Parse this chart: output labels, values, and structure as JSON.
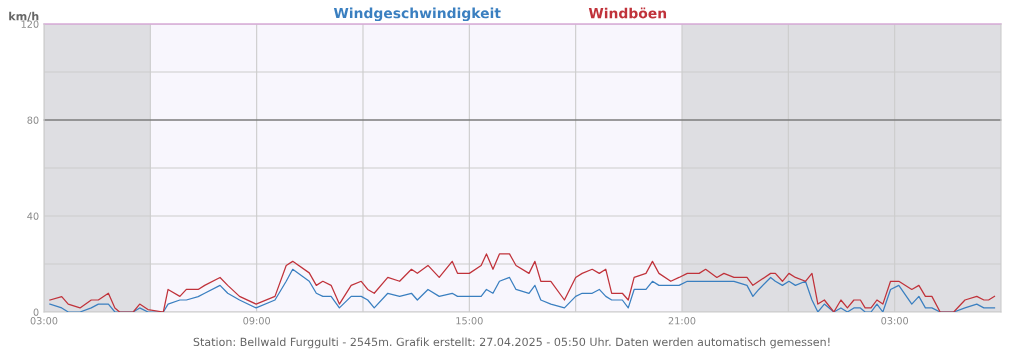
{
  "chart_data": {
    "type": "line",
    "ylabel": "km/h",
    "x": [
      "2025-04-26T03:10",
      "2025-04-26T03:30",
      "2025-04-26T03:41",
      "2025-04-26T04:01",
      "2025-04-26T04:20",
      "2025-04-26T04:32",
      "2025-04-26T04:49",
      "2025-04-26T05:00",
      "2025-04-26T05:08",
      "2025-04-26T05:31",
      "2025-04-26T05:42",
      "2025-04-26T05:56",
      "2025-04-26T06:22",
      "2025-04-26T06:30",
      "2025-04-26T06:50",
      "2025-04-26T07:01",
      "2025-04-26T07:21",
      "2025-04-26T07:32",
      "2025-04-26T07:58",
      "2025-04-26T08:11",
      "2025-04-26T08:31",
      "2025-04-26T08:59",
      "2025-04-26T09:31",
      "2025-04-26T09:50",
      "2025-04-26T10:01",
      "2025-04-26T10:29",
      "2025-04-26T10:41",
      "2025-04-26T10:52",
      "2025-04-26T11:06",
      "2025-04-26T11:20",
      "2025-04-26T11:40",
      "2025-04-26T11:57",
      "2025-04-26T12:08",
      "2025-04-26T12:19",
      "2025-04-26T12:42",
      "2025-04-26T13:02",
      "2025-04-26T13:22",
      "2025-04-26T13:32",
      "2025-04-26T13:50",
      "2025-04-26T14:09",
      "2025-04-26T14:31",
      "2025-04-26T14:40",
      "2025-04-26T15:00",
      "2025-04-26T15:20",
      "2025-04-26T15:29",
      "2025-04-26T15:40",
      "2025-04-26T15:51",
      "2025-04-26T16:08",
      "2025-04-26T16:19",
      "2025-04-26T16:41",
      "2025-04-26T16:51",
      "2025-04-26T17:01",
      "2025-04-26T17:18",
      "2025-04-26T17:41",
      "2025-04-26T18:00",
      "2025-04-26T18:11",
      "2025-04-26T18:28",
      "2025-04-26T18:40",
      "2025-04-26T18:51",
      "2025-04-26T19:01",
      "2025-04-26T19:19",
      "2025-04-26T19:29",
      "2025-04-26T19:39",
      "2025-04-26T19:59",
      "2025-04-26T20:10",
      "2025-04-26T20:21",
      "2025-04-26T20:41",
      "2025-04-26T20:55",
      "2025-04-26T21:09",
      "2025-04-26T21:12",
      "2025-04-26T21:29",
      "2025-04-26T21:40",
      "2025-04-26T21:59",
      "2025-04-26T22:11",
      "2025-04-26T22:28",
      "2025-04-26T22:50",
      "2025-04-26T23:00",
      "2025-04-26T23:10",
      "2025-04-26T23:30",
      "2025-04-26T23:38",
      "2025-04-26T23:50",
      "2025-04-27T00:01",
      "2025-04-27T00:12",
      "2025-04-27T00:29",
      "2025-04-27T00:40",
      "2025-04-27T00:50",
      "2025-04-27T01:01",
      "2025-04-27T01:17",
      "2025-04-27T01:29",
      "2025-04-27T01:40",
      "2025-04-27T01:51",
      "2025-04-27T02:02",
      "2025-04-27T02:10",
      "2025-04-27T02:20",
      "2025-04-27T02:30",
      "2025-04-27T02:40",
      "2025-04-27T02:53",
      "2025-04-27T03:07",
      "2025-04-27T03:29",
      "2025-04-27T03:41",
      "2025-04-27T03:52",
      "2025-04-27T04:03",
      "2025-04-27T04:17",
      "2025-04-27T04:40",
      "2025-04-27T04:59",
      "2025-04-27T05:19",
      "2025-04-27T05:31",
      "2025-04-27T05:39",
      "2025-04-27T05:49"
    ],
    "series": [
      {
        "name": "Windgeschwindigkeit",
        "color": "#3a7fc0",
        "values": [
          3.3,
          1.7,
          0,
          0,
          1.7,
          3.3,
          3.3,
          0,
          0,
          0,
          1.7,
          0,
          0,
          3.3,
          5,
          5,
          6.4,
          7.8,
          11.1,
          7.8,
          5,
          1.7,
          5,
          12.8,
          17.8,
          12.8,
          7.8,
          6.5,
          6.5,
          1.7,
          6.5,
          6.5,
          5,
          1.7,
          7.8,
          6.5,
          7.8,
          5,
          9.4,
          6.5,
          7.8,
          6.5,
          6.5,
          6.5,
          9.4,
          7.8,
          12.8,
          14.4,
          9.4,
          7.8,
          11.1,
          5,
          3.3,
          1.7,
          6.5,
          7.8,
          7.8,
          9.4,
          6.5,
          5,
          5,
          1.7,
          9.4,
          9.4,
          12.8,
          11.1,
          11.1,
          11.1,
          12.8,
          12.8,
          12.8,
          12.8,
          12.8,
          12.8,
          12.8,
          11.1,
          6.5,
          9.4,
          14.4,
          12.8,
          11.1,
          12.8,
          11.1,
          12.8,
          5,
          0,
          3.3,
          0,
          1.7,
          0,
          1.7,
          1.7,
          0,
          0,
          3.3,
          0,
          9.4,
          11.1,
          3.3,
          6.5,
          1.7,
          1.7,
          0,
          0,
          1.7,
          3.3,
          1.7,
          1.7,
          1.7
        ]
      },
      {
        "name": "Windböen",
        "color": "#c0323a",
        "values": [
          5,
          6.4,
          3.3,
          1.7,
          5,
          5,
          7.8,
          1.7,
          0,
          0,
          3.3,
          1,
          0,
          9.4,
          6.5,
          9.4,
          9.4,
          11.1,
          14.4,
          11.1,
          6.5,
          3.3,
          6.5,
          19.4,
          21.1,
          16.3,
          11.1,
          12.8,
          11.1,
          3.3,
          11.1,
          12.8,
          9.4,
          7.8,
          14.4,
          12.8,
          17.8,
          16.1,
          19.4,
          14.4,
          21.1,
          16.1,
          16.1,
          19.4,
          24.2,
          17.8,
          24.2,
          24.2,
          19.4,
          16.1,
          21.1,
          12.8,
          12.8,
          5,
          14.4,
          16.1,
          17.8,
          16.1,
          17.8,
          7.8,
          7.8,
          5,
          14.4,
          16.1,
          21.1,
          16.1,
          12.8,
          14.4,
          16.1,
          16.1,
          16.1,
          17.8,
          14.4,
          16.1,
          14.4,
          14.4,
          11.1,
          12.8,
          16.1,
          16.1,
          12.8,
          16.1,
          14.4,
          12.8,
          16.1,
          3.3,
          5,
          0,
          5,
          1.7,
          5,
          5,
          1.7,
          1.7,
          5,
          3.3,
          12.8,
          12.8,
          9.4,
          11.1,
          6.5,
          6.5,
          0,
          0,
          5,
          6.5,
          5,
          5,
          6.5
        ]
      }
    ],
    "xlim": [
      "2025-04-26T03:00",
      "2025-04-27T06:00"
    ],
    "xticks": [
      {
        "value": "2025-04-26T03:00",
        "label": "03:00"
      },
      {
        "value": "2025-04-26T06:00",
        "label": null
      },
      {
        "value": "2025-04-26T09:00",
        "label": "09:00"
      },
      {
        "value": "2025-04-26T12:00",
        "label": null
      },
      {
        "value": "2025-04-26T15:00",
        "label": "15:00"
      },
      {
        "value": "2025-04-26T18:00",
        "label": null
      },
      {
        "value": "2025-04-26T21:00",
        "label": "21:00"
      },
      {
        "value": "2025-04-27T00:00",
        "label": null
      },
      {
        "value": "2025-04-27T03:00",
        "label": "03:00"
      }
    ],
    "ylim": [
      0,
      120
    ],
    "yticks": [
      0,
      {
        "value": 20,
        "label": null
      },
      40,
      {
        "value": 60,
        "label": null
      },
      80,
      {
        "value": 100,
        "label": null
      },
      120
    ],
    "grid": true,
    "legend": "top",
    "marker": "none",
    "line_style": "solid",
    "ref_lines": [
      {
        "axis": "y",
        "value": 80,
        "color": "#555555"
      },
      {
        "axis": "y",
        "value": 120,
        "color": "#ee66ee"
      }
    ],
    "bands": [
      {
        "axis": "x",
        "from": "2025-04-26T03:00",
        "to": "2025-04-26T06:00",
        "color": "#dedee2"
      },
      {
        "axis": "x",
        "from": "2025-04-26T06:00",
        "to": "2025-04-26T21:00",
        "color": "#f8f6fd"
      },
      {
        "axis": "x",
        "from": "2025-04-26T21:00",
        "to": "2025-04-27T06:00",
        "color": "#dedee2"
      }
    ],
    "annotations": [
      "Station: Bellwald Furggulti - 2545m. Grafik erstellt: 27.04.2025 - 05:50 Uhr. Daten werden automatisch gemessen!"
    ]
  }
}
